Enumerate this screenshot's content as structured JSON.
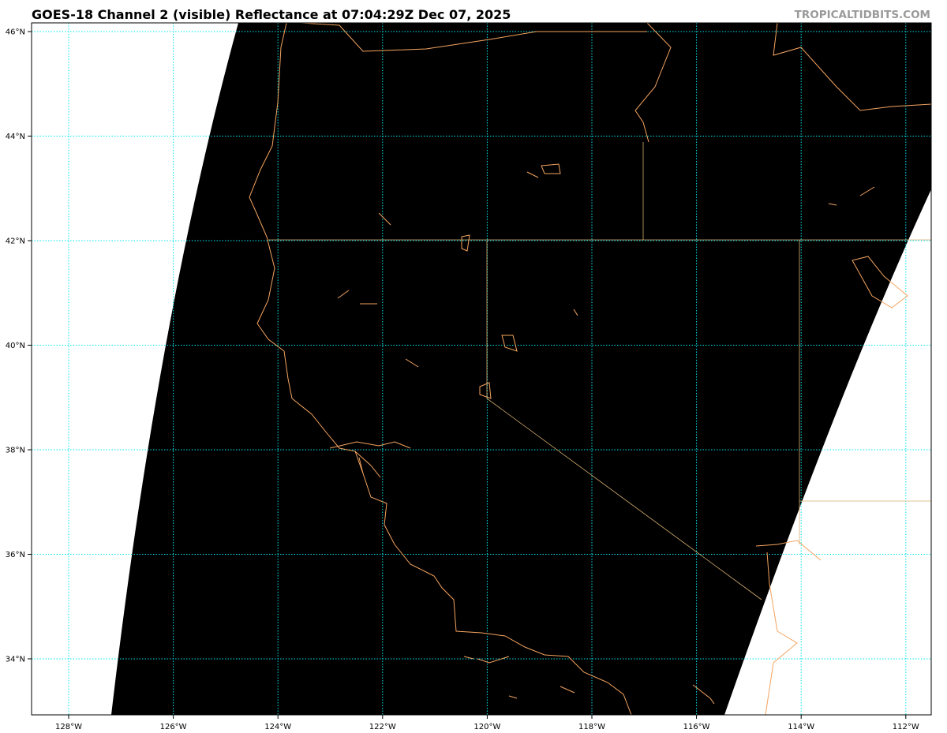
{
  "header": {
    "title": "GOES-18 Channel 2 (visible) Reflectance at 07:04:29Z Dec 07, 2025",
    "credit": "TROPICALTIDBITS.COM"
  },
  "map": {
    "projection": "plate carree",
    "lon_range": [
      -128.7,
      -111.5
    ],
    "lat_range": [
      32.9,
      46.2
    ],
    "lon_ticks": [
      "128°W",
      "126°W",
      "124°W",
      "122°W",
      "120°W",
      "118°W",
      "116°W",
      "114°W",
      "112°W"
    ],
    "lat_ticks": [
      "46°N",
      "44°N",
      "42°N",
      "40°N",
      "38°N",
      "36°N",
      "34°N"
    ],
    "colors": {
      "imagery": "#000000",
      "no_data": "#ffffff",
      "gridlines": "#00e5ee",
      "coastline": "#f4a460",
      "state_borders": "#d8b070"
    }
  }
}
